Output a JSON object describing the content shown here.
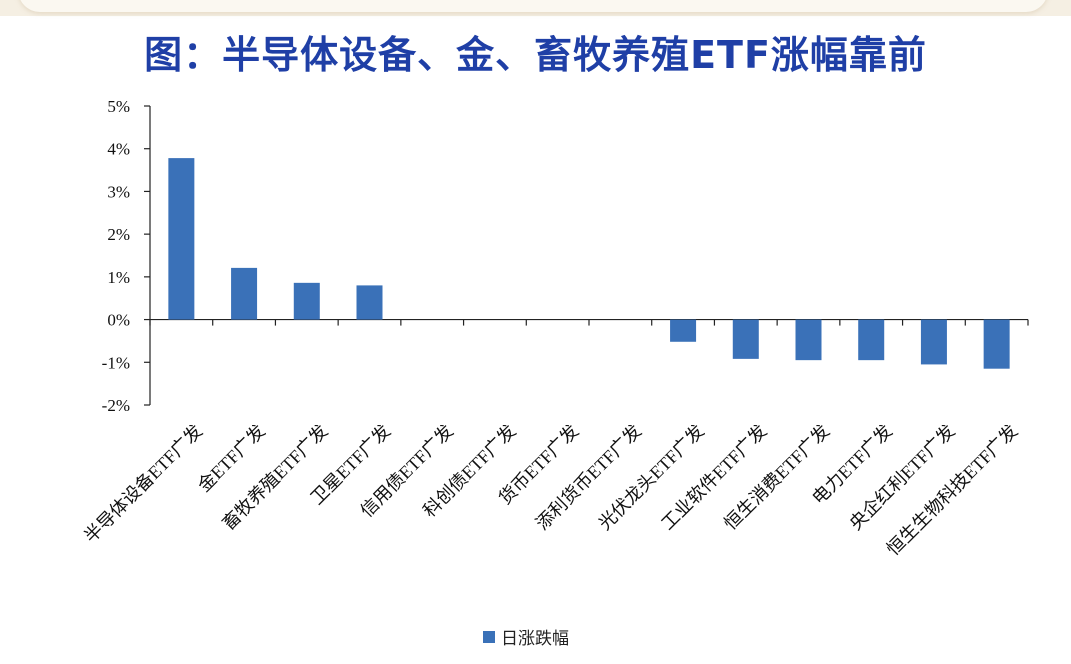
{
  "title": "图：半导体设备、金、畜牧养殖ETF涨幅靠前",
  "colors": {
    "bar": "#3a71b8",
    "title": "#1f3fa6",
    "axis": "#222222"
  },
  "chart_data": {
    "type": "bar",
    "title": "图：半导体设备、金、畜牧养殖ETF涨幅靠前",
    "xlabel": "",
    "ylabel": "",
    "ylim": [
      -2,
      5
    ],
    "y_ticks": [
      "5%",
      "4%",
      "3%",
      "2%",
      "1%",
      "0%",
      "-1%",
      "-2%"
    ],
    "y_tick_values": [
      5,
      4,
      3,
      2,
      1,
      0,
      -1,
      -2
    ],
    "categories": [
      "半导体设备ETF广发",
      "金ETF广发",
      "畜牧养殖ETF广发",
      "卫星ETF广发",
      "信用债ETF广发",
      "科创债ETF广发",
      "货币ETF广发",
      "添利货币ETF广发",
      "光伏龙头ETF广发",
      "工业软件ETF广发",
      "恒生消费ETF广发",
      "电力ETF广发",
      "央企红利ETF广发",
      "恒生生物科技ETF广发"
    ],
    "series": [
      {
        "name": "日涨跌幅",
        "values": [
          3.78,
          1.21,
          0.86,
          0.8,
          0.0,
          0.0,
          0.0,
          0.0,
          -0.52,
          -0.92,
          -0.95,
          -0.95,
          -1.05,
          -1.15
        ]
      }
    ],
    "legend_position": "bottom",
    "grid": false
  }
}
